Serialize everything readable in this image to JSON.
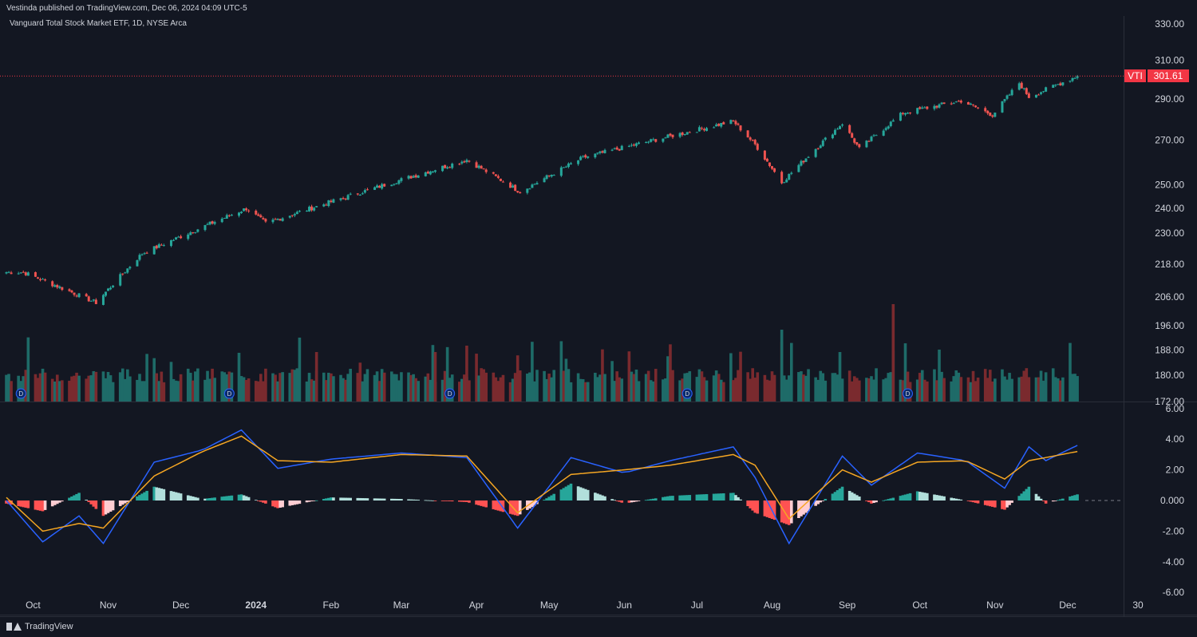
{
  "header": {
    "published": "Vestinda published on TradingView.com, Dec 06, 2024 04:09 UTC-5"
  },
  "symbol": {
    "title": "Vanguard Total Stock Market ETF, 1D, NYSE Arca"
  },
  "last_price": {
    "ticker": "VTI",
    "value": "301.61",
    "color": "#f23645"
  },
  "footer": {
    "brand": "TradingView"
  },
  "colors": {
    "up": "#26a69a",
    "down": "#ef5350",
    "macd": "#2962ff",
    "signal": "#f5a623"
  },
  "icons": [
    "dividend-marker-icon",
    "tradingview-logo-icon"
  ],
  "chart_data": [
    {
      "type": "candlestick",
      "title": "Vanguard Total Stock Market ETF, 1D, NYSE Arca",
      "y_scale": "log",
      "yticks": [
        "330.00",
        "310.00",
        "290.00",
        "270.00",
        "250.00",
        "240.00",
        "230.00",
        "218.00",
        "206.00",
        "196.00",
        "188.00",
        "180.00",
        "172.00"
      ],
      "ylim": [
        172,
        330
      ],
      "xticks": [
        "Oct",
        "Nov",
        "Dec",
        "2024",
        "Feb",
        "Mar",
        "Apr",
        "May",
        "Jun",
        "Jul",
        "Aug",
        "Sep",
        "Oct",
        "Nov",
        "Dec",
        "30"
      ],
      "price_anchors": {
        "x": [
          "2023-09-27",
          "2023-10-27",
          "2023-11-15",
          "2023-12-28",
          "2024-01-05",
          "2024-03-28",
          "2024-04-19",
          "2024-05-15",
          "2024-07-16",
          "2024-07-25",
          "2024-08-05",
          "2024-08-30",
          "2024-09-06",
          "2024-09-24",
          "2024-10-18",
          "2024-10-31",
          "2024-11-11",
          "2024-11-15",
          "2024-12-05"
        ],
        "close": [
          215,
          204,
          222,
          240,
          234,
          261,
          247,
          262,
          279,
          268,
          251,
          278,
          266,
          283,
          289,
          282,
          298,
          291,
          301.61
        ]
      },
      "last_price": 301.61,
      "dividend_markers": [
        "D",
        "D",
        "D",
        "D",
        "D"
      ],
      "volume": "bars colored by candle direction, shown in lower part of price pane"
    },
    {
      "type": "macd",
      "yticks": [
        "6.00",
        "4.00",
        "2.00",
        "0.000",
        "-2.00",
        "-4.00",
        "-6.00"
      ],
      "ylim": [
        -6,
        6
      ],
      "anchors": {
        "x": [
          "2023-09-20",
          "2023-10-05",
          "2023-10-20",
          "2023-10-30",
          "2023-11-20",
          "2023-12-10",
          "2023-12-26",
          "2024-01-10",
          "2024-02-01",
          "2024-03-01",
          "2024-03-28",
          "2024-04-18",
          "2024-05-10",
          "2024-06-01",
          "2024-06-20",
          "2024-07-16",
          "2024-07-25",
          "2024-08-08",
          "2024-08-30",
          "2024-09-11",
          "2024-09-30",
          "2024-10-20",
          "2024-11-05",
          "2024-11-15",
          "2024-11-22",
          "2024-12-05"
        ],
        "macd": [
          0.0,
          -2.7,
          -1.0,
          -2.8,
          2.5,
          3.3,
          4.6,
          2.1,
          2.7,
          3.1,
          2.8,
          -1.8,
          2.8,
          1.8,
          2.6,
          3.5,
          1.5,
          -2.8,
          2.9,
          1.0,
          3.1,
          2.6,
          0.8,
          3.5,
          2.6,
          3.6
        ],
        "signal": [
          0.2,
          -2.0,
          -1.5,
          -1.8,
          1.6,
          3.2,
          4.2,
          2.6,
          2.5,
          3.0,
          2.9,
          -0.8,
          1.7,
          2.0,
          2.3,
          3.0,
          2.3,
          -1.2,
          2.0,
          1.2,
          2.5,
          2.6,
          1.4,
          2.6,
          2.8,
          3.2
        ]
      }
    }
  ]
}
